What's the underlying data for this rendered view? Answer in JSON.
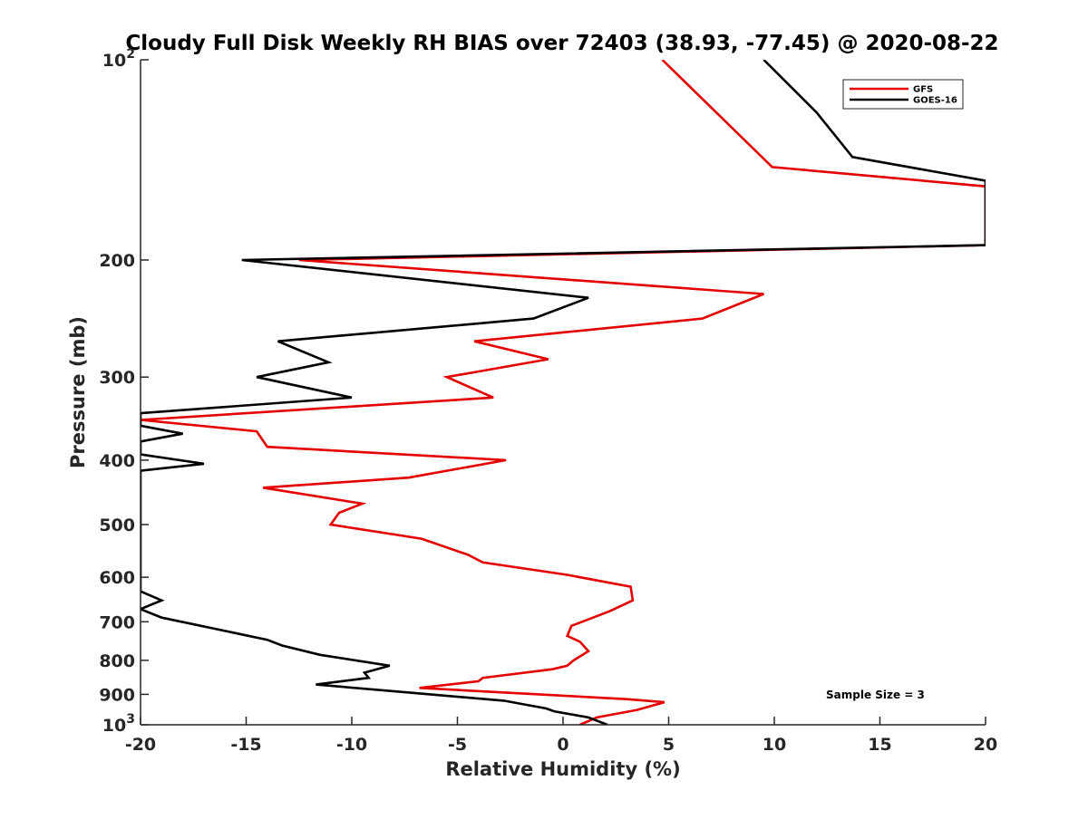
{
  "chart_data": {
    "type": "line",
    "title": "Cloudy Full Disk Weekly RH BIAS over 72403 (38.93, -77.45) @ 2020-08-22",
    "xlabel": "Relative Humidity (%)",
    "ylabel": "Pressure (mb)",
    "xlim": [
      -20,
      20
    ],
    "ylim": [
      100,
      1000
    ],
    "y_scale": "log",
    "y_reversed": true,
    "x_ticks": [
      -20,
      -15,
      -10,
      -5,
      0,
      5,
      10,
      15,
      20
    ],
    "y_ticks": [
      {
        "value": 100,
        "base": "10",
        "exp": "2"
      },
      {
        "value": 200,
        "label": "200"
      },
      {
        "value": 300,
        "label": "300"
      },
      {
        "value": 400,
        "label": "400"
      },
      {
        "value": 500,
        "label": "500"
      },
      {
        "value": 600,
        "label": "600"
      },
      {
        "value": 700,
        "label": "700"
      },
      {
        "value": 800,
        "label": "800"
      },
      {
        "value": 900,
        "label": "900"
      },
      {
        "value": 1000,
        "base": "10",
        "exp": "3"
      }
    ],
    "grid": false,
    "legend_position": "top-right",
    "annotation": "Sample Size = 3",
    "series": [
      {
        "name": "GFS",
        "color": "#e50000",
        "points": [
          [
            0.8,
            1000
          ],
          [
            1.6,
            975
          ],
          [
            3.5,
            950
          ],
          [
            4.8,
            925
          ],
          [
            3.0,
            915
          ],
          [
            -6.8,
            880
          ],
          [
            -4.0,
            860
          ],
          [
            -3.8,
            850
          ],
          [
            -0.5,
            825
          ],
          [
            0.2,
            815
          ],
          [
            0.5,
            800
          ],
          [
            1.2,
            775
          ],
          [
            0.8,
            750
          ],
          [
            0.2,
            735
          ],
          [
            0.4,
            710
          ],
          [
            2.2,
            675
          ],
          [
            3.3,
            650
          ],
          [
            3.2,
            620
          ],
          [
            0.2,
            595
          ],
          [
            -3.8,
            570
          ],
          [
            -4.5,
            555
          ],
          [
            -6.7,
            525
          ],
          [
            -11.0,
            500
          ],
          [
            -10.6,
            480
          ],
          [
            -9.5,
            465
          ],
          [
            -14.2,
            440
          ],
          [
            -7.3,
            425
          ],
          [
            -2.7,
            400
          ],
          [
            -14.0,
            382
          ],
          [
            -14.5,
            362
          ],
          [
            -20.0,
            348
          ],
          [
            -3.3,
            322
          ],
          [
            -5.5,
            300
          ],
          [
            -0.7,
            282
          ],
          [
            -4.2,
            265
          ],
          [
            6.6,
            245
          ],
          [
            9.5,
            225
          ],
          [
            -12.5,
            200
          ],
          [
            20.0,
            190
          ],
          [
            20.0,
            155
          ],
          [
            9.9,
            145
          ],
          [
            4.7,
            100
          ]
        ]
      },
      {
        "name": "GOES-16",
        "color": "#000000",
        "points": [
          [
            2.1,
            1000
          ],
          [
            1.2,
            975
          ],
          [
            -0.4,
            955
          ],
          [
            -0.8,
            945
          ],
          [
            -2.8,
            920
          ],
          [
            -11.7,
            870
          ],
          [
            -9.2,
            850
          ],
          [
            -9.4,
            835
          ],
          [
            -8.2,
            815
          ],
          [
            -11.5,
            785
          ],
          [
            -13.3,
            760
          ],
          [
            -14.0,
            745
          ],
          [
            -19.0,
            690
          ],
          [
            -20.0,
            670
          ],
          [
            -19.0,
            650
          ],
          [
            -20.0,
            630
          ],
          [
            -20.0,
            415
          ],
          [
            -17.0,
            405
          ],
          [
            -20.0,
            392
          ],
          [
            -20.0,
            375
          ],
          [
            -18.0,
            365
          ],
          [
            -20.0,
            355
          ],
          [
            -20.0,
            340
          ],
          [
            -10.0,
            322
          ],
          [
            -14.5,
            300
          ],
          [
            -11.1,
            285
          ],
          [
            -13.5,
            265
          ],
          [
            -1.4,
            245
          ],
          [
            1.2,
            228
          ],
          [
            -15.2,
            200
          ],
          [
            20.0,
            190
          ],
          [
            20.0,
            152
          ],
          [
            13.7,
            140
          ],
          [
            12.0,
            120
          ],
          [
            9.5,
            100
          ]
        ]
      }
    ]
  }
}
